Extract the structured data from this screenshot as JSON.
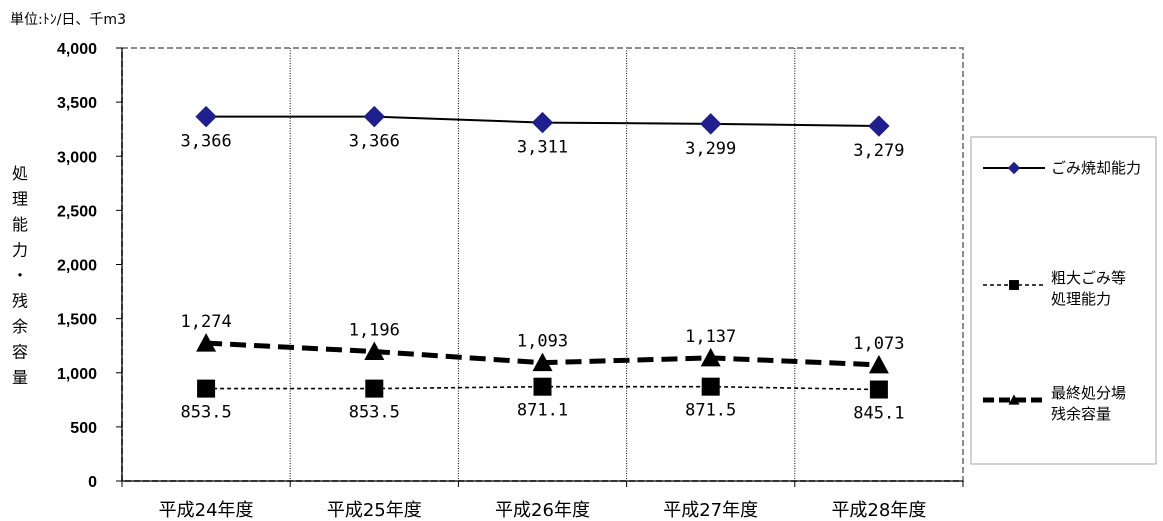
{
  "chart_data": {
    "type": "line",
    "unit_label": "単位:ﾄﾝ/日、千m3",
    "ylabel": "処理能力・残余容量",
    "categories": [
      "平成24年度",
      "平成25年度",
      "平成26年度",
      "平成27年度",
      "平成28年度"
    ],
    "ylim": [
      0,
      4000
    ],
    "yticks": [
      0,
      500,
      1000,
      1500,
      2000,
      2500,
      3000,
      3500,
      4000
    ],
    "ytick_labels": [
      "0",
      "500",
      "1,000",
      "1,500",
      "2,000",
      "2,500",
      "3,000",
      "3,500",
      "4,000"
    ],
    "grid": "vertical dotted lines between categories",
    "legend_position": "right",
    "series": [
      {
        "name": "ごみ焼却能力",
        "values": [
          3366,
          3366,
          3311,
          3299,
          3279
        ],
        "labels": [
          "3,366",
          "3,366",
          "3,311",
          "3,299",
          "3,279"
        ],
        "color": "#000000",
        "marker": "diamond",
        "marker_color": "#1f1f8f",
        "line_style": "solid"
      },
      {
        "name": "粗大ごみ等\n処理能力",
        "values": [
          853.5,
          853.5,
          871.1,
          871.5,
          845.1
        ],
        "labels": [
          "853.5",
          "853.5",
          "871.1",
          "871.5",
          "845.1"
        ],
        "color": "#000000",
        "marker": "square",
        "marker_color": "#000000",
        "line_style": "dotted"
      },
      {
        "name": "最終処分場\n残余容量",
        "values": [
          1274,
          1196,
          1093,
          1137,
          1073
        ],
        "labels": [
          "1,274",
          "1,196",
          "1,093",
          "1,137",
          "1,073"
        ],
        "color": "#000000",
        "marker": "triangle",
        "marker_color": "#000000",
        "line_style": "dashed"
      }
    ]
  }
}
